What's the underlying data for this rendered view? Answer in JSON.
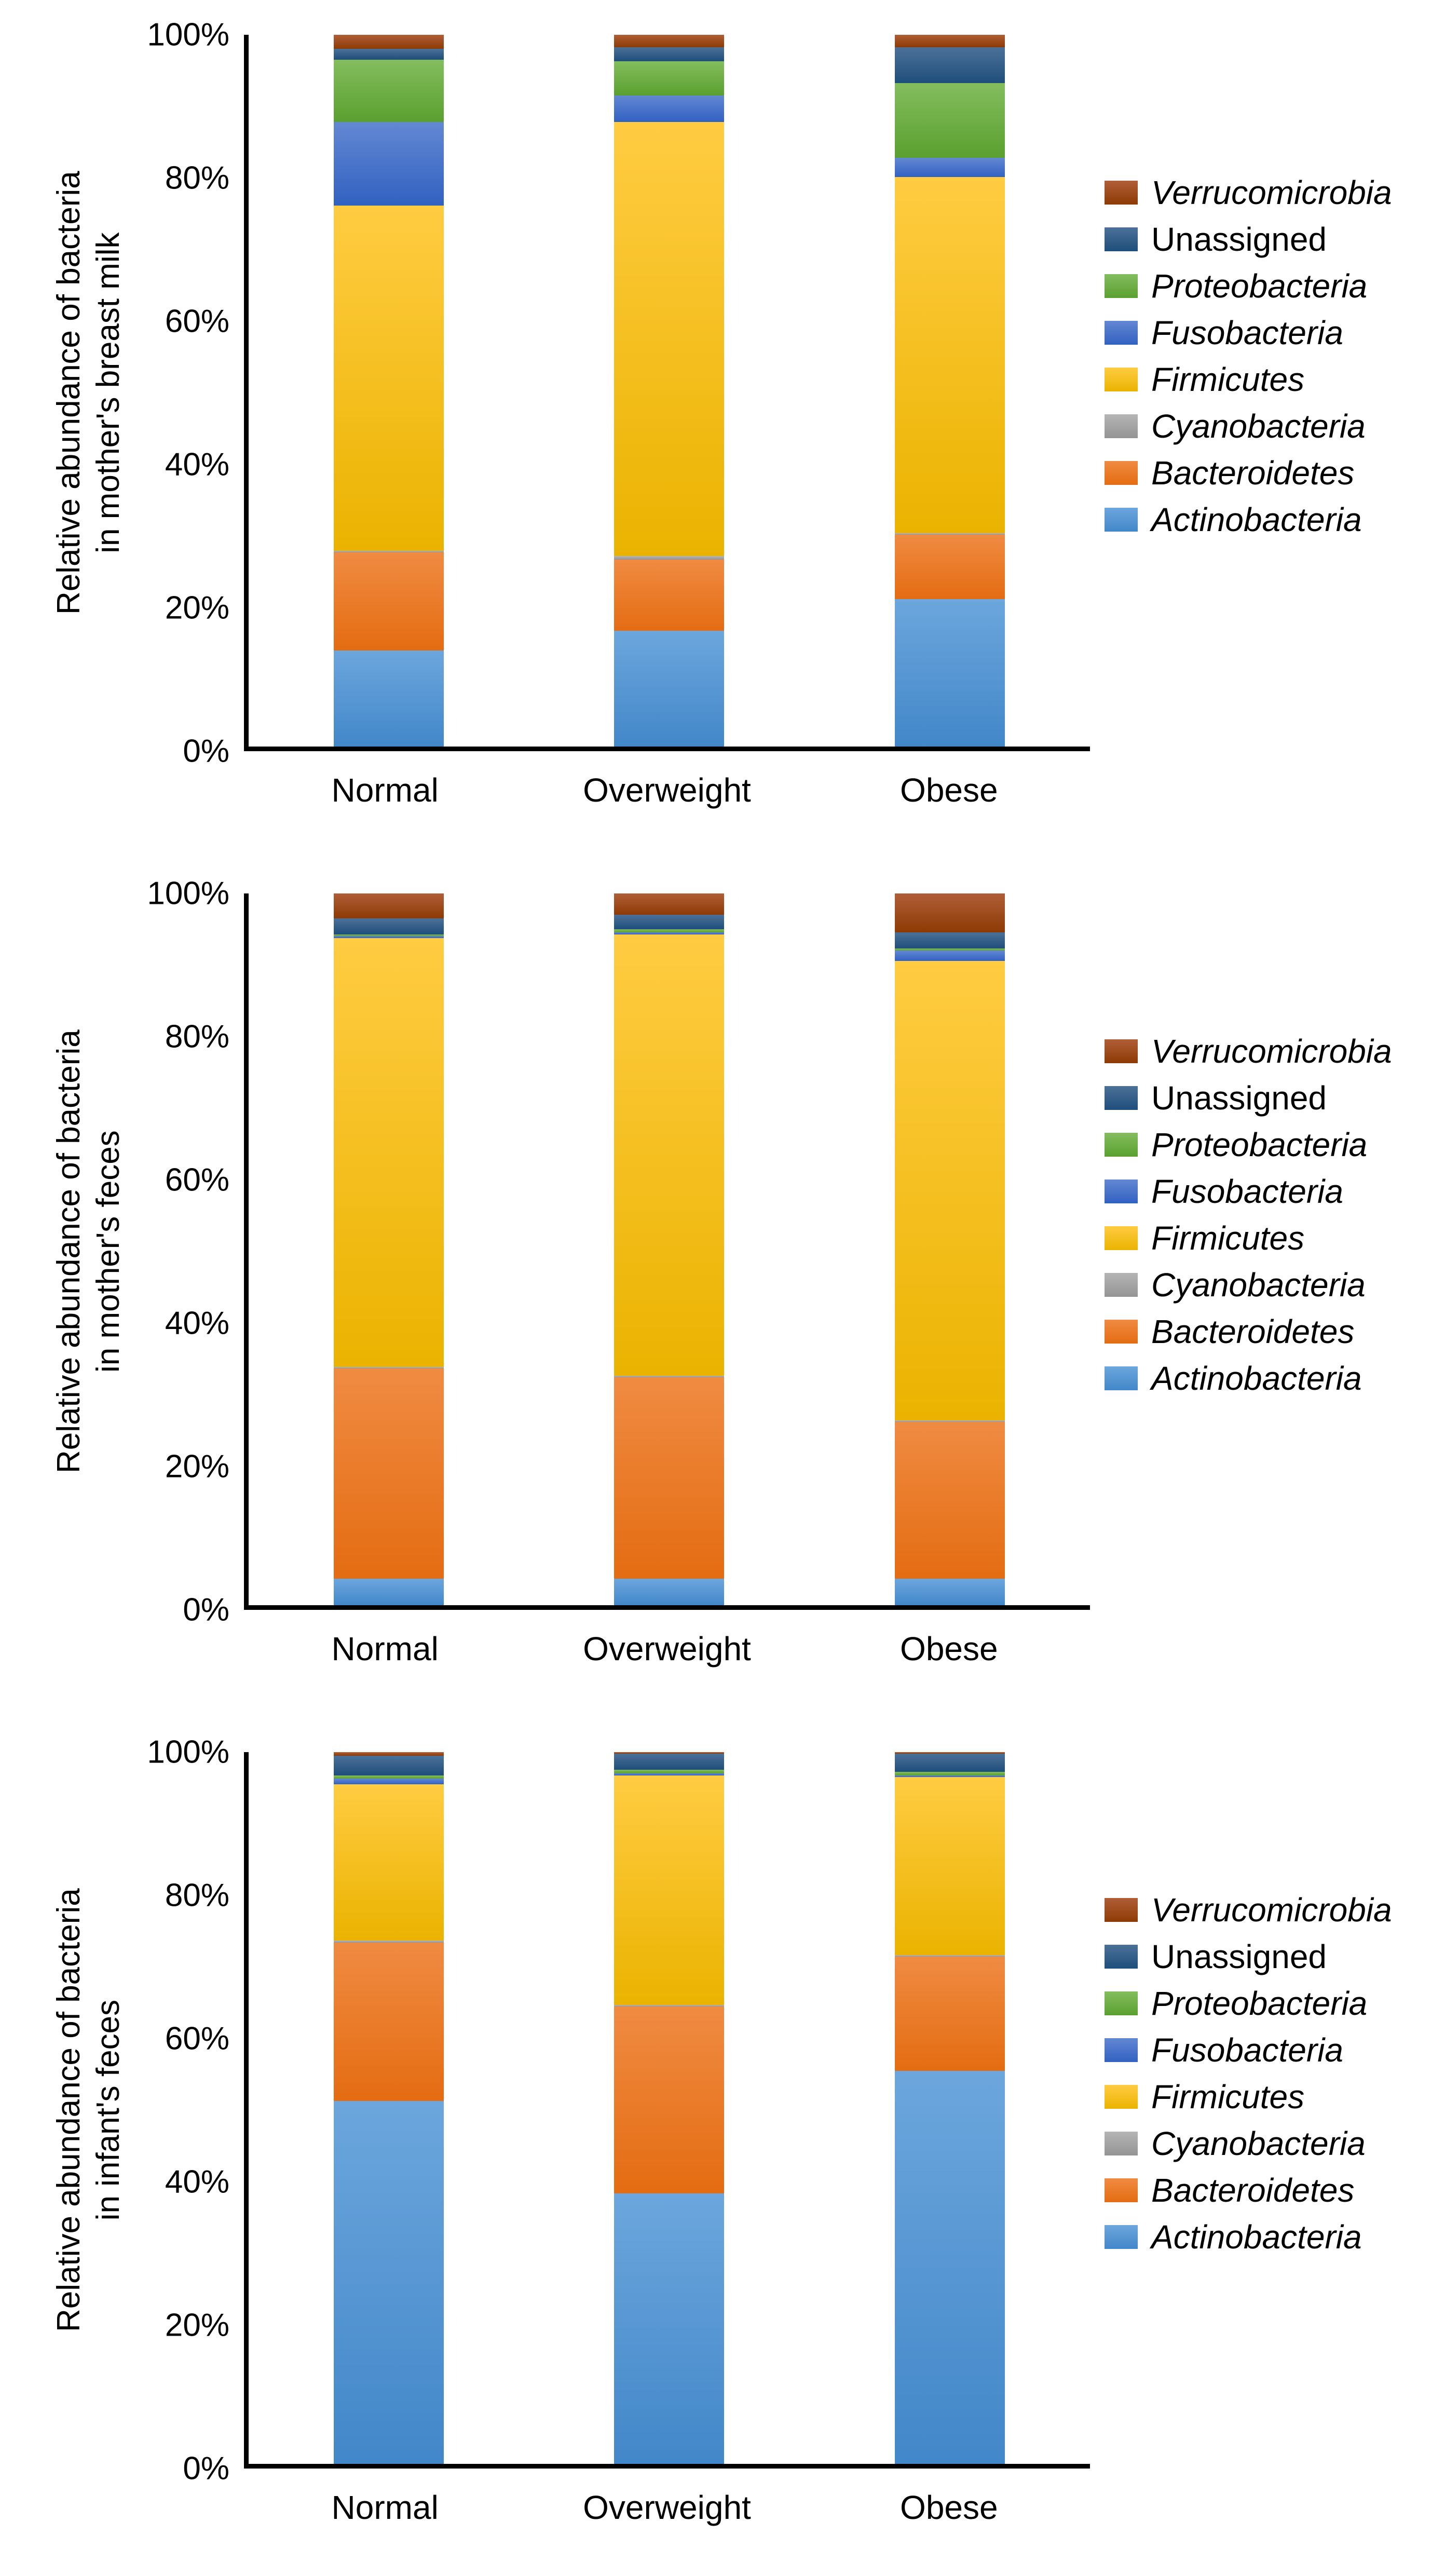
{
  "legend": {
    "entries": [
      {
        "label": "Verrucomicrobia",
        "italic": true,
        "color": "#9E4117",
        "color_light": "#B05E38",
        "color_dark": "#8E3A04"
      },
      {
        "label": "Unassigned",
        "italic": false,
        "color": "#255E91",
        "color_light": "#4C7198",
        "color_dark": "#1E4E7B"
      },
      {
        "label": "Proteobacteria",
        "italic": true,
        "color": "#70AD47",
        "color_light": "#84BD5E",
        "color_dark": "#5AA02F"
      },
      {
        "label": "Fusobacteria",
        "italic": true,
        "color": "#4472C4",
        "color_light": "#6388D3",
        "color_dark": "#3161C1"
      },
      {
        "label": "Firmicutes",
        "italic": true,
        "color": "#FFC000",
        "color_light": "#FFCC42",
        "color_dark": "#EBB300"
      },
      {
        "label": "Cyanobacteria",
        "italic": true,
        "color": "#A5A5A5",
        "color_light": "#B5B5B5",
        "color_dark": "#949494"
      },
      {
        "label": "Bacteroidetes",
        "italic": true,
        "color": "#ED7D31",
        "color_light": "#F08B42",
        "color_dark": "#E46C12"
      },
      {
        "label": "Actinobacteria",
        "italic": true,
        "color": "#5B9BD5",
        "color_light": "#6CA6DD",
        "color_dark": "#4287C9"
      }
    ]
  },
  "chart_data": [
    {
      "type": "stacked-bar",
      "title": "",
      "xlabel": "",
      "ylabel_line1": "Relative abundance of bacteria",
      "ylabel_line2": "in mother's breast milk",
      "ylim": [
        0,
        100
      ],
      "yticks": [
        "0%",
        "20%",
        "40%",
        "60%",
        "80%",
        "100%"
      ],
      "grid": false,
      "legend_position": "right",
      "categories": [
        "Normal",
        "Overweight",
        "Obese"
      ],
      "series": [
        {
          "name": "Actinobacteria",
          "values": [
            13.5,
            16.25,
            20.75
          ]
        },
        {
          "name": "Bacteroidetes",
          "values": [
            13.75,
            10,
            9
          ]
        },
        {
          "name": "Cyanobacteria",
          "values": [
            0.25,
            0.5,
            0.25
          ]
        },
        {
          "name": "Firmicutes",
          "values": [
            48.5,
            61,
            50
          ]
        },
        {
          "name": "Fusobacteria",
          "values": [
            11.75,
            3.75,
            2.75
          ]
        },
        {
          "name": "Proteobacteria",
          "values": [
            8.75,
            4.75,
            10.5
          ]
        },
        {
          "name": "Unassigned",
          "values": [
            1.5,
            2,
            5
          ]
        },
        {
          "name": "Verrucomicrobia",
          "values": [
            2,
            1.75,
            1.75
          ]
        }
      ]
    },
    {
      "type": "stacked-bar",
      "title": "",
      "xlabel": "",
      "ylabel_line1": "Relative abundance of bacteria",
      "ylabel_line2": "in mother's feces",
      "ylim": [
        0,
        100
      ],
      "yticks": [
        "0%",
        "20%",
        "40%",
        "60%",
        "80%",
        "100%"
      ],
      "grid": false,
      "legend_position": "right",
      "categories": [
        "Normal",
        "Overweight",
        "Obese"
      ],
      "series": [
        {
          "name": "Actinobacteria",
          "values": [
            3.75,
            3.75,
            3.75
          ]
        },
        {
          "name": "Bacteroidetes",
          "values": [
            29.5,
            28.25,
            22
          ]
        },
        {
          "name": "Cyanobacteria",
          "values": [
            0.25,
            0.25,
            0.25
          ]
        },
        {
          "name": "Firmicutes",
          "values": [
            60.25,
            62,
            64.5
          ]
        },
        {
          "name": "Fusobacteria",
          "values": [
            0.25,
            0.25,
            1.5
          ]
        },
        {
          "name": "Proteobacteria",
          "values": [
            0.25,
            0.5,
            0.25
          ]
        },
        {
          "name": "Unassigned",
          "values": [
            2.25,
            2,
            2.25
          ]
        },
        {
          "name": "Verrucomicrobia",
          "values": [
            3.5,
            3,
            5.5
          ]
        }
      ]
    },
    {
      "type": "stacked-bar",
      "title": "",
      "xlabel": "",
      "ylabel_line1": "Relative abundance of bacteria",
      "ylabel_line2": "in infant's feces",
      "ylim": [
        0,
        100
      ],
      "yticks": [
        "0%",
        "20%",
        "40%",
        "60%",
        "80%",
        "100%"
      ],
      "grid": false,
      "legend_position": "right",
      "categories": [
        "Normal",
        "Overweight",
        "Obese"
      ],
      "series": [
        {
          "name": "Actinobacteria",
          "values": [
            51,
            38,
            55.25
          ]
        },
        {
          "name": "Bacteroidetes",
          "values": [
            22.25,
            26.25,
            16
          ]
        },
        {
          "name": "Cyanobacteria",
          "values": [
            0.25,
            0.25,
            0.25
          ]
        },
        {
          "name": "Firmicutes",
          "values": [
            22,
            32.25,
            25
          ]
        },
        {
          "name": "Fusobacteria",
          "values": [
            0.75,
            0.25,
            0.25
          ]
        },
        {
          "name": "Proteobacteria",
          "values": [
            0.5,
            0.5,
            0.5
          ]
        },
        {
          "name": "Unassigned",
          "values": [
            2.75,
            2.25,
            2.5
          ]
        },
        {
          "name": "Verrucomicrobia",
          "values": [
            0.5,
            0.25,
            0.25
          ]
        }
      ]
    }
  ]
}
